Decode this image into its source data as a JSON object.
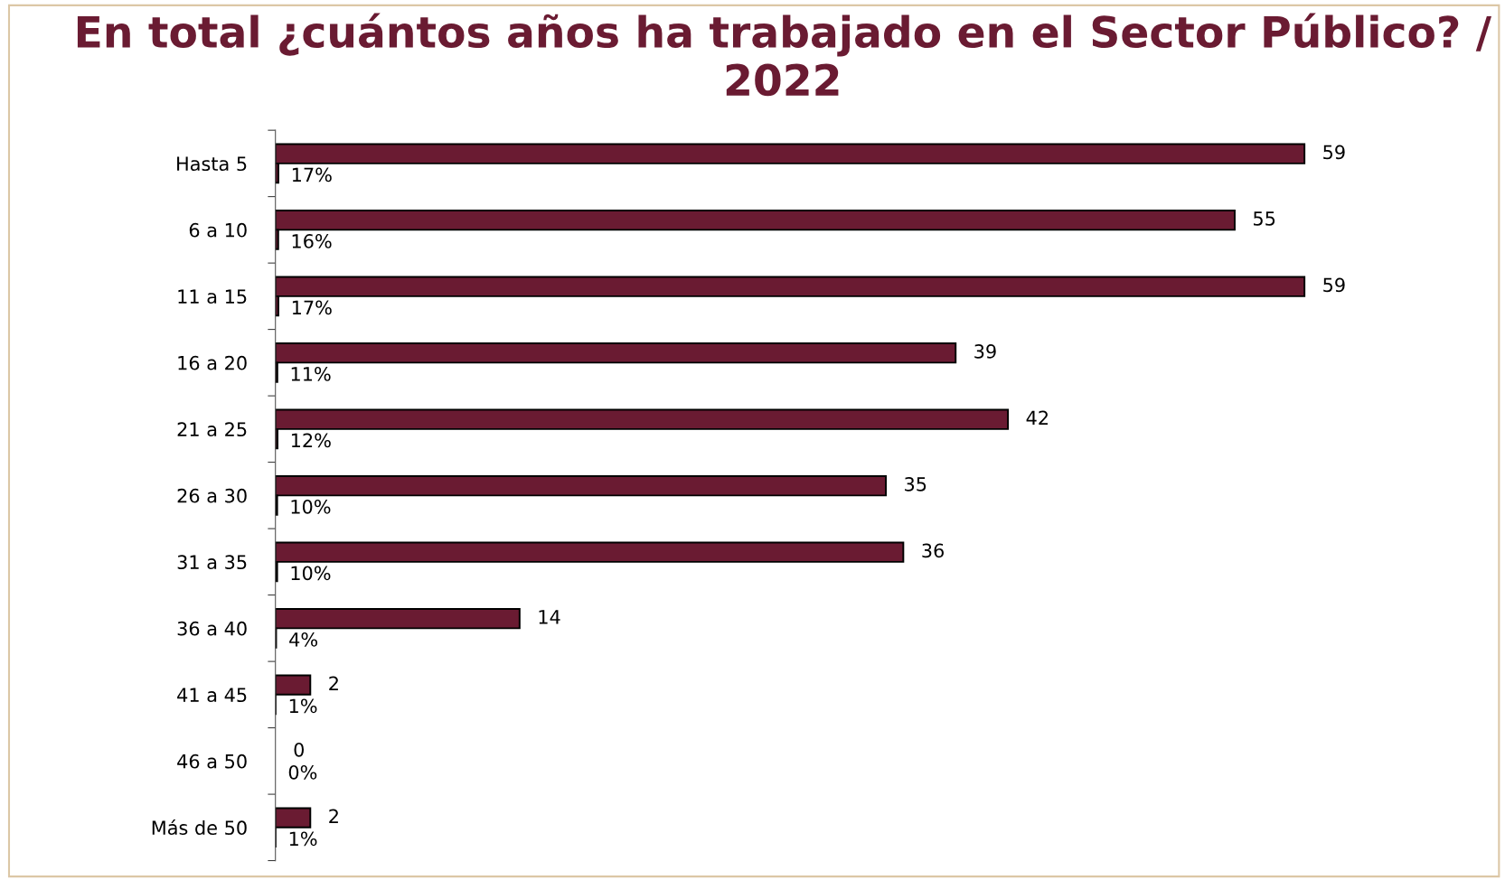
{
  "chart_data": {
    "type": "bar",
    "orientation": "horizontal",
    "title": "En total ¿cuántos años ha trabajado en el Sector Público? / 2022",
    "categories": [
      "Hasta 5",
      "6 a 10",
      "11 a 15",
      "16 a 20",
      "21 a 25",
      "26 a 30",
      "31 a 35",
      "36 a 40",
      "41 a 45",
      "46 a 50",
      "Más de 50"
    ],
    "series": [
      {
        "color": "#6a1b32",
        "values": [
          59,
          55,
          59,
          39,
          42,
          35,
          36,
          14,
          2,
          0,
          2
        ]
      },
      {
        "color": "#6a1b32",
        "values": [
          0.17,
          0.16,
          0.17,
          0.11,
          0.12,
          0.1,
          0.1,
          0.04,
          0.01,
          0,
          0.01
        ],
        "value_labels": [
          "17%",
          "16%",
          "17%",
          "11%",
          "12%",
          "10%",
          "10%",
          "4%",
          "1%",
          "0%",
          "1%"
        ]
      }
    ],
    "data_labels": true,
    "grid": false
  }
}
